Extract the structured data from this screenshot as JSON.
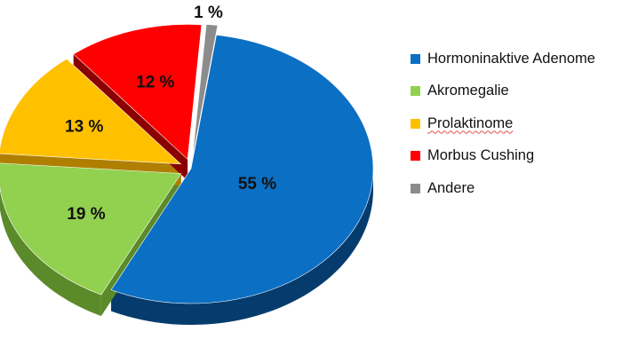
{
  "chart_data": {
    "type": "pie",
    "title": "",
    "slices": [
      {
        "label": "Hormoninaktive Adenome",
        "value": 55,
        "value_label": "55 %",
        "color": "#0b6fc4",
        "side_color": "#063c6d",
        "exploded": false
      },
      {
        "label": "Akromegalie",
        "value": 19,
        "value_label": "19 %",
        "color": "#92d050",
        "side_color": "#5a8a2a",
        "exploded": true
      },
      {
        "label": "Prolaktinome",
        "value": 13,
        "value_label": "13 %",
        "color": "#ffc000",
        "side_color": "#b07f00",
        "exploded": true
      },
      {
        "label": "Morbus Cushing",
        "value": 12,
        "value_label": "12 %",
        "color": "#ff0000",
        "side_color": "#8b0000",
        "exploded": true
      },
      {
        "label": "Andere",
        "value": 1,
        "value_label": "1 %",
        "color": "#8c8c8c",
        "side_color": "#555555",
        "exploded": true
      }
    ],
    "legend_position": "right",
    "three_d": true
  }
}
